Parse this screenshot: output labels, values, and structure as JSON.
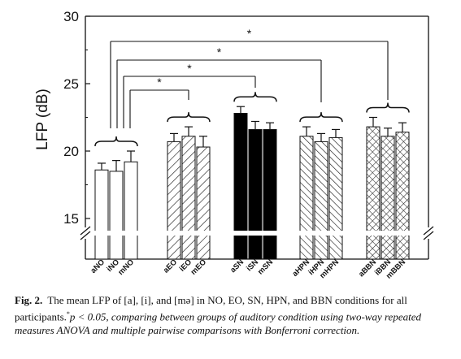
{
  "chart_data": {
    "type": "bar",
    "ylabel": "LFP (dB)",
    "ylim": [
      13,
      30
    ],
    "yticks": [
      15,
      20,
      25,
      30
    ],
    "axis_break": true,
    "groups": [
      {
        "name": "NO",
        "categories": [
          "aNO",
          "iNO",
          "mNO"
        ],
        "values": [
          18.6,
          18.5,
          19.2
        ],
        "errors": [
          0.5,
          0.8,
          0.8
        ],
        "pattern": "none"
      },
      {
        "name": "EO",
        "categories": [
          "aEO",
          "iEO",
          "mEO"
        ],
        "values": [
          20.7,
          21.1,
          20.3
        ],
        "errors": [
          0.6,
          0.7,
          0.8
        ],
        "pattern": "diag-down"
      },
      {
        "name": "SN",
        "categories": [
          "aSN",
          "iSN",
          "mSN"
        ],
        "values": [
          22.8,
          21.6,
          21.6
        ],
        "errors": [
          0.5,
          0.6,
          0.5
        ],
        "pattern": "solid"
      },
      {
        "name": "HPN",
        "categories": [
          "aHPN",
          "iHPN",
          "mHPN"
        ],
        "values": [
          21.1,
          20.7,
          21.0
        ],
        "errors": [
          0.7,
          0.6,
          0.6
        ],
        "pattern": "diag-up"
      },
      {
        "name": "BBN",
        "categories": [
          "aBBN",
          "iBBN",
          "mBBN"
        ],
        "values": [
          21.8,
          21.1,
          21.4
        ],
        "errors": [
          0.7,
          0.6,
          0.7
        ],
        "pattern": "crosshatch"
      }
    ],
    "significance": [
      {
        "from": "NO",
        "to": "EO",
        "label": "*"
      },
      {
        "from": "NO",
        "to": "SN",
        "label": "*"
      },
      {
        "from": "NO",
        "to": "HPN",
        "label": "*"
      },
      {
        "from": "NO",
        "to": "BBN",
        "label": "*"
      }
    ]
  },
  "caption": {
    "lead": "Fig. 2.",
    "text1": "The mean LFP of [a], [i], and [mə] in NO, EO, SN, HPN, and BBN conditions for all participants.",
    "sup": "*",
    "text2": "p < 0.05, comparing between groups of auditory condition using two-way repeated measures ANOVA and multiple pairwise comparisons with Bonferroni correction."
  }
}
